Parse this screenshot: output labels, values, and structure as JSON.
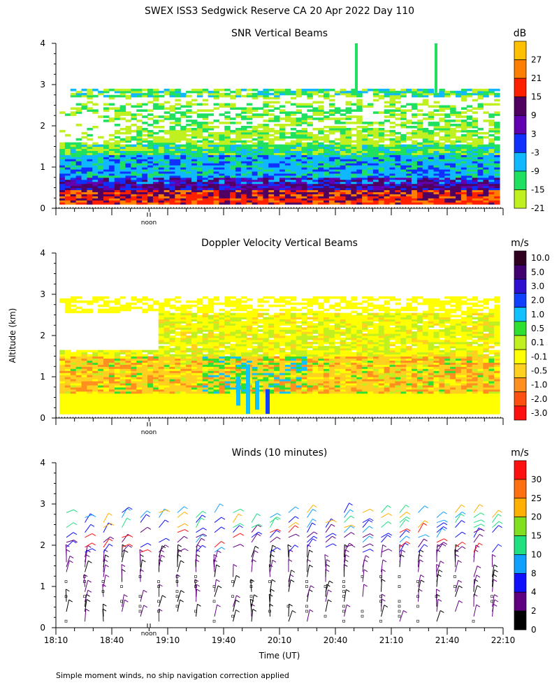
{
  "figure_title": "SWEX ISS3 Sedgwick Reserve CA  20 Apr 2022 Day 110",
  "y_axis_label": "Altitude (km)",
  "x_axis_label": "Time (UT)",
  "x_tick_labels": [
    "18:10",
    "18:40",
    "19:10",
    "19:40",
    "20:10",
    "20:40",
    "21:10",
    "21:40",
    "22:10"
  ],
  "noon_label": "noon",
  "footnote": "Simple moment winds, no ship navigation correction applied",
  "chart_data": [
    {
      "type": "heatmap",
      "title": "SNR Vertical Beams",
      "xlabel": "",
      "ylabel": "Altitude (km)",
      "x_range": [
        "18:10",
        "22:10"
      ],
      "ylim": [
        0,
        4
      ],
      "y_ticks": [
        "0",
        "1",
        "2",
        "3",
        "4"
      ],
      "colorbar": {
        "unit": "dB",
        "labels": [
          "27",
          "21",
          "15",
          "9",
          "3",
          "-3",
          "-9",
          "-15",
          "-21"
        ],
        "colors": [
          "#ffc000",
          "#ff8000",
          "#ff2000",
          "#500060",
          "#6000b0",
          "#1030ff",
          "#10b8ff",
          "#20e060",
          "#c0f020"
        ]
      },
      "layers": [
        {
          "alt_km": [
            0.1,
            0.4
          ],
          "level_db": "15 to 27"
        },
        {
          "alt_km": [
            0.4,
            0.7
          ],
          "level_db": "3 to 9"
        },
        {
          "alt_km": [
            0.7,
            1.5
          ],
          "level_db": "-9 to -3"
        },
        {
          "alt_km": [
            1.5,
            2.3
          ],
          "level_db": "-21 to -15"
        },
        {
          "alt_km": [
            2.4,
            2.8
          ],
          "level_db": "-21 to -9"
        }
      ]
    },
    {
      "type": "heatmap",
      "title": "Doppler Velocity Vertical Beams",
      "xlabel": "",
      "ylabel": "Altitude (km)",
      "x_range": [
        "18:10",
        "22:10"
      ],
      "ylim": [
        0,
        4
      ],
      "y_ticks": [
        "0",
        "1",
        "2",
        "3",
        "4"
      ],
      "colorbar": {
        "unit": "m/s",
        "labels": [
          "10.0",
          "5.0",
          "3.0",
          "2.0",
          "1.0",
          "0.5",
          "0.1",
          "-0.1",
          "-0.5",
          "-1.0",
          "-2.0",
          "-3.0"
        ],
        "colors": [
          "#300020",
          "#400070",
          "#3010d0",
          "#1040ff",
          "#10c0ff",
          "#30e030",
          "#c0f020",
          "#ffff00",
          "#ffd020",
          "#ff9020",
          "#ff5010",
          "#ff1010"
        ]
      },
      "layers": [
        {
          "alt_km": [
            0.1,
            0.6
          ],
          "level_ms": "-0.1 to 0.1"
        },
        {
          "alt_km": [
            0.6,
            1.5
          ],
          "level_ms": "-0.5 to -1.0"
        },
        {
          "alt_km": [
            1.5,
            2.5
          ],
          "level_ms": "-0.1 to 0.5"
        }
      ]
    },
    {
      "type": "barbs",
      "title": "Winds (10 minutes)",
      "xlabel": "Time (UT)",
      "ylabel": "Altitude (km)",
      "x_range": [
        "18:10",
        "22:10"
      ],
      "ylim": [
        0,
        4
      ],
      "y_ticks": [
        "0",
        "1",
        "2",
        "3",
        "4"
      ],
      "interval": "10 minutes",
      "colorbar": {
        "unit": "m/s",
        "labels": [
          "30",
          "25",
          "20",
          "15",
          "10",
          "8",
          "4",
          "2",
          "0"
        ],
        "colors": [
          "#ff1010",
          "#ff7010",
          "#ffb000",
          "#80e020",
          "#20e080",
          "#10a0ff",
          "#1010ff",
          "#600080",
          "#000000"
        ]
      }
    }
  ]
}
